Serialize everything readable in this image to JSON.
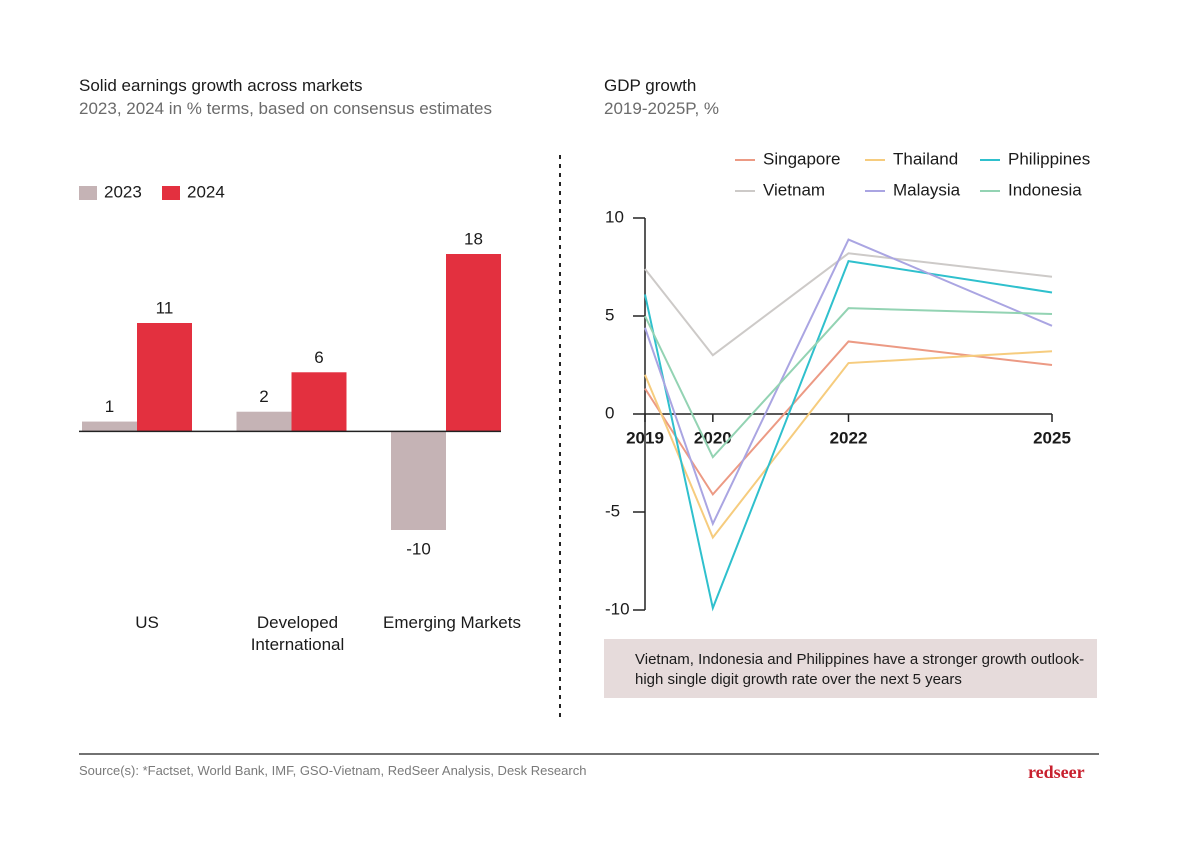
{
  "chart_data": [
    {
      "type": "bar",
      "title": "Solid earnings growth across markets",
      "subtitle": "2023, 2024 in % terms, based on consensus estimates",
      "categories": [
        "US",
        "Developed International",
        "Emerging Markets"
      ],
      "series": [
        {
          "name": "2023",
          "color": "#c5b3b5",
          "values": [
            1,
            2,
            -10
          ]
        },
        {
          "name": "2024",
          "color": "#e3303f",
          "values": [
            11,
            6,
            18
          ]
        }
      ],
      "legend": "top-left"
    },
    {
      "type": "line",
      "title": "GDP growth",
      "subtitle": "2019-2025P, %",
      "x": [
        2019,
        2020,
        2022,
        2025
      ],
      "xlim": [
        2019,
        2025
      ],
      "xticks": [
        2019,
        2020,
        2022,
        2025
      ],
      "ylim": [
        -10,
        10
      ],
      "yticks": [
        -10,
        -5,
        0,
        5,
        10
      ],
      "grid": false,
      "legend": "top-right",
      "series": [
        {
          "name": "Singapore",
          "color": "#ec9a84",
          "values": [
            1.3,
            -4.1,
            3.7,
            2.5
          ]
        },
        {
          "name": "Thailand",
          "color": "#f6cc7e",
          "values": [
            2.0,
            -6.3,
            2.6,
            3.2
          ]
        },
        {
          "name": "Philippines",
          "color": "#2fc0cd",
          "values": [
            6.1,
            -9.9,
            7.8,
            6.2
          ]
        },
        {
          "name": "Vietnam",
          "color": "#cdcac8",
          "values": [
            7.4,
            3.0,
            8.2,
            7.0
          ]
        },
        {
          "name": "Malaysia",
          "color": "#aaa5e2",
          "values": [
            4.4,
            -5.6,
            8.9,
            4.5
          ]
        },
        {
          "name": "Indonesia",
          "color": "#93d3b3",
          "values": [
            5.0,
            -2.2,
            5.4,
            5.1
          ]
        }
      ],
      "annotation": "Vietnam, Indonesia and Philippines have a stronger growth outlook- high single digit growth rate over the next 5 years"
    }
  ],
  "footer": {
    "source": "Source(s): *Factset, World Bank, IMF, GSO-Vietnam, RedSeer Analysis, Desk Research",
    "logo": "redseer"
  }
}
